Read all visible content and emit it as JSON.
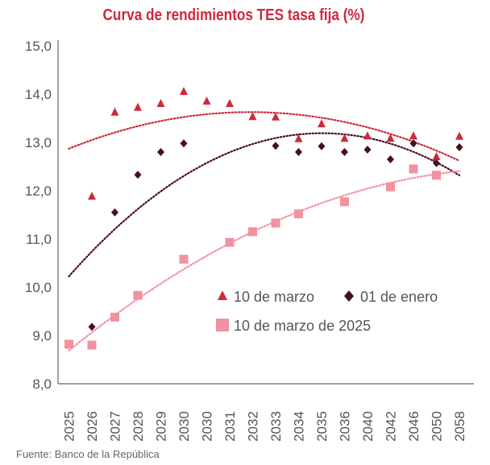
{
  "chart_data": {
    "type": "scatter",
    "title": "Curva de rendimientos TES tasa fija (%)",
    "source": "Fuente: Banco de la República",
    "categories": [
      "2025",
      "2026",
      "2027",
      "2028",
      "2029",
      "2030",
      "2030",
      "2031",
      "2032",
      "2033",
      "2034",
      "2035",
      "2036",
      "2040",
      "2042",
      "2046",
      "2050",
      "2058"
    ],
    "ylim": [
      8.0,
      15.0
    ],
    "yticks": [
      "8,0",
      "9,0",
      "10,0",
      "11,0",
      "12,0",
      "13,0",
      "14,0",
      "15,0"
    ],
    "grid": false,
    "legend_position": "center-right",
    "trendline": "polynomial (dotted)",
    "series": [
      {
        "name": "10 de marzo",
        "marker": "triangle",
        "color": "#d0283c",
        "values": [
          null,
          11.88,
          13.62,
          13.72,
          13.8,
          14.05,
          13.85,
          13.8,
          13.53,
          13.52,
          13.07,
          13.38,
          13.08,
          13.13,
          13.08,
          13.13,
          12.7,
          13.12
        ]
      },
      {
        "name": "01 de enero",
        "marker": "diamond",
        "color": "#4a0e1e",
        "values": [
          null,
          9.18,
          11.55,
          12.33,
          12.8,
          12.98,
          null,
          null,
          null,
          12.93,
          12.8,
          12.92,
          12.8,
          12.85,
          12.65,
          12.98,
          12.57,
          12.9
        ]
      },
      {
        "name": "10 de marzo de 2025",
        "marker": "square",
        "color": "#f2919f",
        "values": [
          8.82,
          8.8,
          9.38,
          9.83,
          null,
          10.58,
          null,
          10.93,
          11.15,
          11.33,
          11.52,
          null,
          11.77,
          null,
          12.08,
          12.45,
          12.32,
          null
        ]
      }
    ]
  }
}
